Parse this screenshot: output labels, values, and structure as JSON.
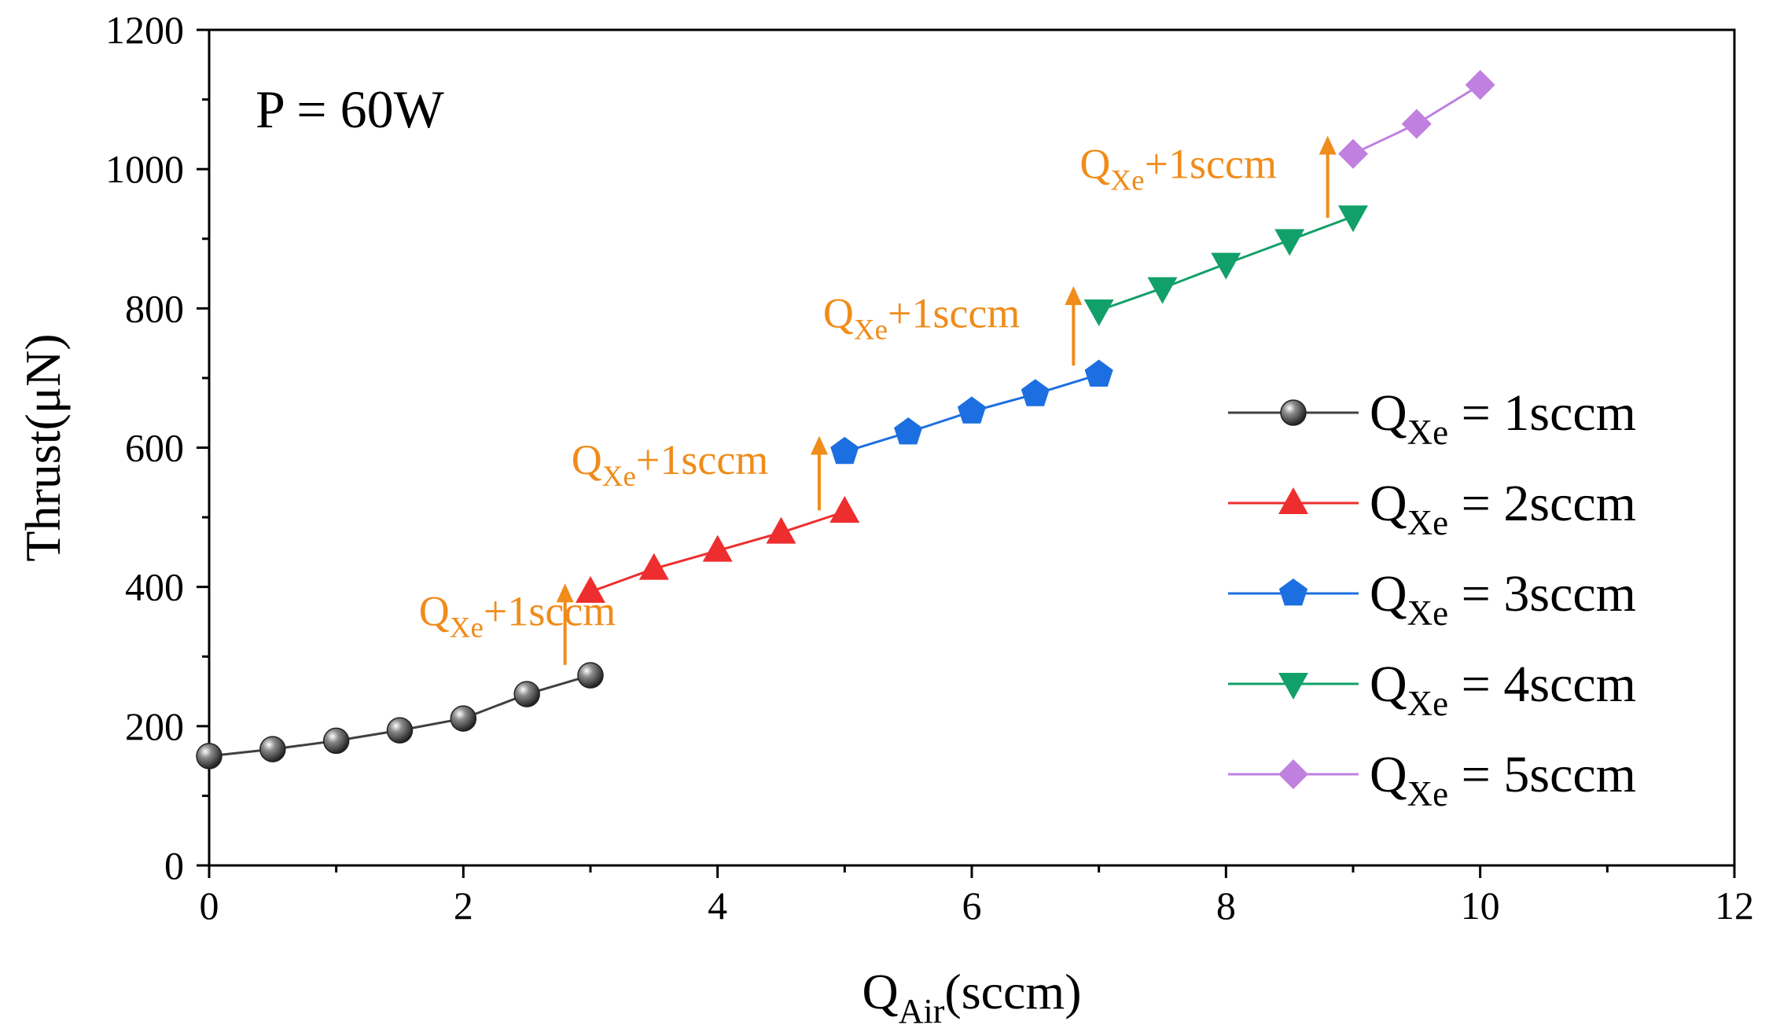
{
  "chart_data": {
    "type": "line",
    "annotation": "P = 60W",
    "xlabel": {
      "base": "Q",
      "sub": "Air",
      "rest": "(sccm)"
    },
    "ylabel": "Thrust(μN)",
    "xlim": [
      0,
      12
    ],
    "ylim": [
      0,
      1200
    ],
    "xticks": [
      "0",
      "2",
      "4",
      "6",
      "8",
      "10",
      "12"
    ],
    "yticks": [
      "0",
      "200",
      "400",
      "600",
      "800",
      "1000",
      "1200"
    ],
    "grid": false,
    "legend_position": "right",
    "series": [
      {
        "name": "Q_Xe = 1sccm",
        "legend_base": "Q",
        "legend_sub": "Xe",
        "legend_rest": " = 1sccm",
        "color": "#404040",
        "marker": "sphere",
        "x": [
          0,
          0.5,
          1,
          1.5,
          2,
          2.5,
          3
        ],
        "y": [
          157,
          167,
          179,
          194,
          211,
          246,
          273
        ]
      },
      {
        "name": "Q_Xe = 2sccm",
        "legend_base": "Q",
        "legend_sub": "Xe",
        "legend_rest": " = 2sccm",
        "color": "#ee2e2e",
        "marker": "triangle-up",
        "x": [
          3,
          3.5,
          4,
          4.5,
          5
        ],
        "y": [
          393,
          426,
          452,
          478,
          508
        ]
      },
      {
        "name": "Q_Xe = 3sccm",
        "legend_base": "Q",
        "legend_sub": "Xe",
        "legend_rest": " = 3sccm",
        "color": "#1c6fe0",
        "marker": "pentagon",
        "x": [
          5,
          5.5,
          6,
          6.5,
          7
        ],
        "y": [
          594,
          622,
          652,
          677,
          705
        ]
      },
      {
        "name": "Q_Xe = 4sccm",
        "legend_base": "Q",
        "legend_sub": "Xe",
        "legend_rest": " = 4sccm",
        "color": "#12a06a",
        "marker": "triangle-down",
        "x": [
          7,
          7.5,
          8,
          8.5,
          9
        ],
        "y": [
          797,
          829,
          864,
          898,
          932
        ]
      },
      {
        "name": "Q_Xe = 5sccm",
        "legend_base": "Q",
        "legend_sub": "Xe",
        "legend_rest": " = 5sccm",
        "color": "#c080e0",
        "marker": "diamond",
        "x": [
          9,
          9.5,
          10
        ],
        "y": [
          1022,
          1065,
          1121
        ]
      }
    ],
    "arrow_color": "#f08c1a",
    "arrows": [
      {
        "x": 2.8,
        "y_from": 288,
        "y_to": 405,
        "label_base": "Q",
        "label_sub": "Xe",
        "label_rest": "+1sccm",
        "label_x": 1.65,
        "label_y": 345
      },
      {
        "x": 4.8,
        "y_from": 510,
        "y_to": 617,
        "label_base": "Q",
        "label_sub": "Xe",
        "label_rest": "+1sccm",
        "label_x": 2.85,
        "label_y": 562
      },
      {
        "x": 6.8,
        "y_from": 718,
        "y_to": 832,
        "label_base": "Q",
        "label_sub": "Xe",
        "label_rest": "+1sccm",
        "label_x": 4.83,
        "label_y": 773
      },
      {
        "x": 8.8,
        "y_from": 930,
        "y_to": 1048,
        "label_base": "Q",
        "label_sub": "Xe",
        "label_rest": "+1sccm",
        "label_x": 6.85,
        "label_y": 987
      }
    ]
  }
}
